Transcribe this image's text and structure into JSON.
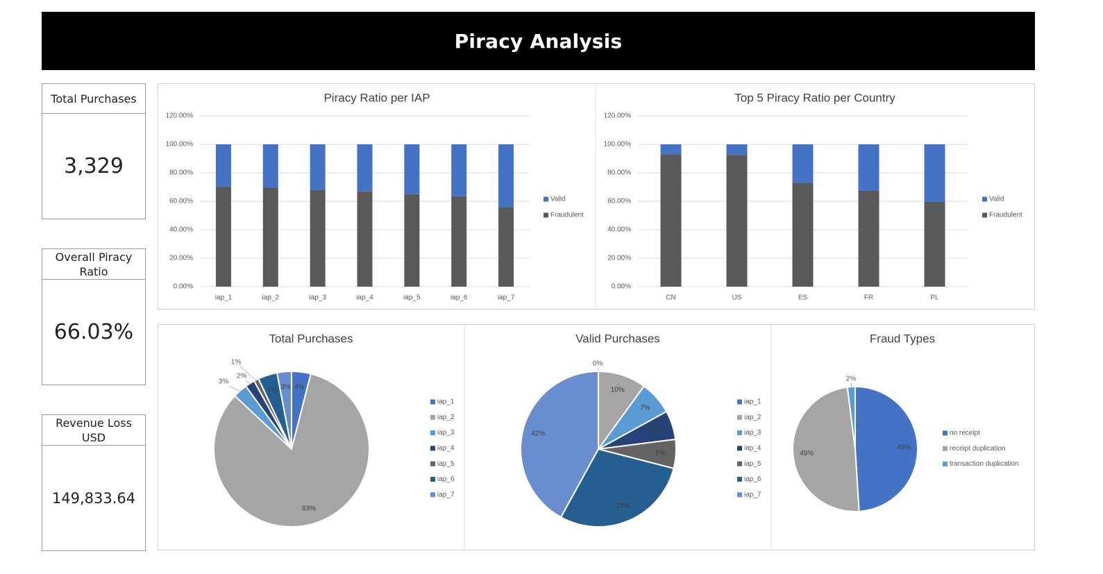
{
  "title": "Piracy Analysis",
  "kpis": {
    "total_purchases": {
      "label": "Total Purchases",
      "value": "3,329"
    },
    "piracy_ratio": {
      "label": "Overall Piracy Ratio",
      "value": "66.03%"
    },
    "revenue_loss": {
      "label": "Revenue Loss USD",
      "value": "149,833.64"
    }
  },
  "colors": {
    "valid": "#4472C4",
    "fraudulent": "#595959",
    "pie_iap": [
      "#4472C4",
      "#A5A5A5",
      "#5B9BD5",
      "#264478",
      "#636363",
      "#255E91",
      "#698ED0"
    ],
    "pie_fraud": [
      "#4472C4",
      "#A5A5A5",
      "#5B9BD5"
    ]
  },
  "chart_data": [
    {
      "type": "bar",
      "stacked": true,
      "title": "Piracy Ratio per IAP",
      "categories": [
        "iap_1",
        "iap_2",
        "iap_3",
        "iap_4",
        "iap_5",
        "iap_6",
        "iap_7"
      ],
      "series": [
        {
          "name": "Valid",
          "values": [
            30,
            30.5,
            32,
            33,
            35,
            36.5,
            44
          ]
        },
        {
          "name": "Fraudulent",
          "values": [
            70,
            69.5,
            68,
            67,
            65,
            63.5,
            56
          ]
        }
      ],
      "ylim": [
        0,
        120
      ],
      "yticks": [
        "0.00%",
        "20.00%",
        "40.00%",
        "60.00%",
        "80.00%",
        "100.00%",
        "120.00%"
      ],
      "legend": "right"
    },
    {
      "type": "bar",
      "stacked": true,
      "title": "Top 5 Piracy Ratio per Country",
      "categories": [
        "CN",
        "US",
        "ES",
        "FR",
        "PL"
      ],
      "series": [
        {
          "name": "Valid",
          "values": [
            7,
            7.5,
            27,
            32.5,
            40.5
          ]
        },
        {
          "name": "Fraudulent",
          "values": [
            93,
            92.5,
            73,
            67.5,
            59.5
          ]
        }
      ],
      "ylim": [
        0,
        120
      ],
      "yticks": [
        "0.00%",
        "20.00%",
        "40.00%",
        "60.00%",
        "80.00%",
        "100.00%",
        "120.00%"
      ],
      "legend": "right"
    },
    {
      "type": "pie",
      "title": "Total Purchases",
      "labels": [
        "iap_1",
        "iap_2",
        "iap_3",
        "iap_4",
        "iap_5",
        "iap_6",
        "iap_7"
      ],
      "values": [
        4,
        83,
        3,
        2,
        1,
        4,
        3
      ],
      "data_labels": [
        "4%",
        "83%",
        "3%",
        "2%",
        "1%",
        "4%",
        "3%"
      ],
      "legend": "right"
    },
    {
      "type": "pie",
      "title": "Valid Purchases",
      "labels": [
        "iap_1",
        "iap_2",
        "iap_3",
        "iap_4",
        "iap_5",
        "iap_6",
        "iap_7"
      ],
      "values": [
        0,
        10,
        7,
        6,
        6,
        29,
        42
      ],
      "data_labels": [
        "0%",
        "10%",
        "7%",
        "6%",
        "6%",
        "29%",
        "42%"
      ],
      "legend": "right"
    },
    {
      "type": "pie",
      "title": "Fraud Types",
      "labels": [
        "no receipt",
        "receipt duplication",
        "transaction duplication"
      ],
      "values": [
        49,
        49,
        2
      ],
      "data_labels": [
        "49%",
        "49%",
        "2%"
      ],
      "legend": "right"
    }
  ]
}
